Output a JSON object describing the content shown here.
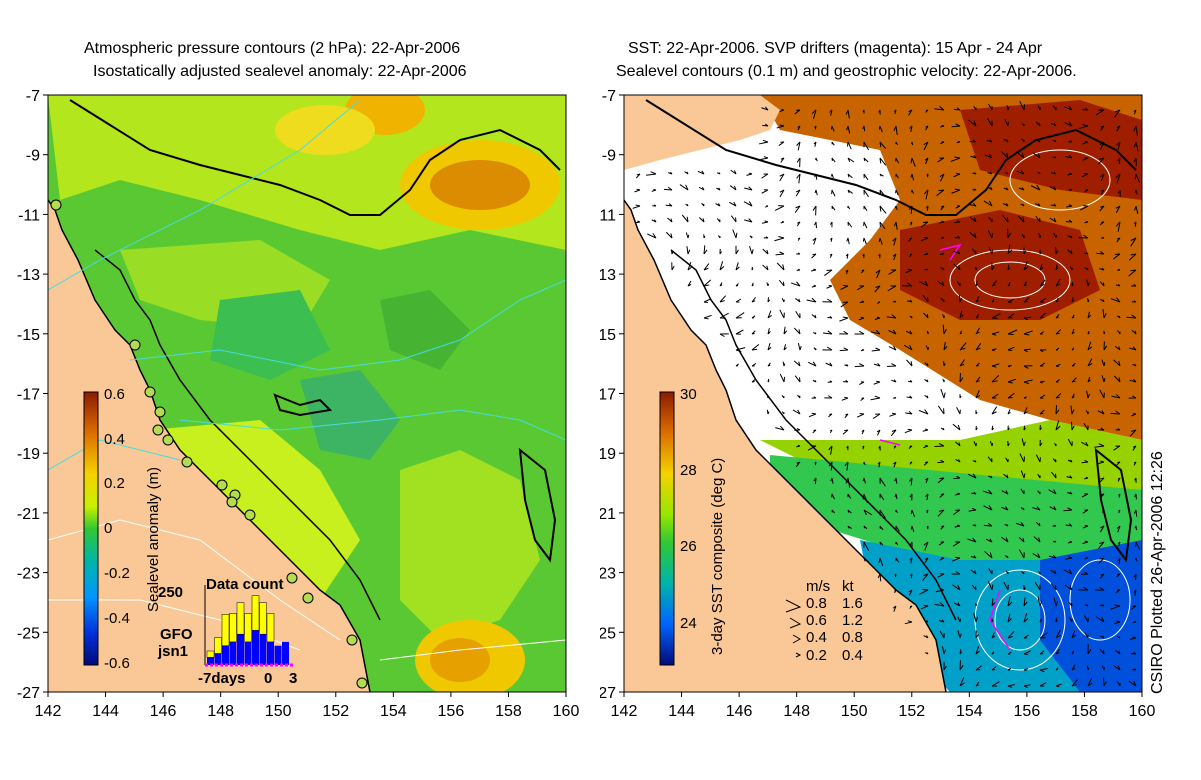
{
  "left_panel": {
    "title_line1": "Atmospheric pressure contours (2 hPa): 22-Apr-2006",
    "title_line2": "Isostatically adjusted sealevel anomaly: 22-Apr-2006",
    "colorbar": {
      "label": "Sealevel anomaly (m)",
      "ticks": [
        "0.6",
        "0.4",
        "0.2",
        "0",
        "-0.2",
        "-0.4",
        "-0.6"
      ],
      "range": [
        -0.6,
        0.6
      ]
    },
    "inset": {
      "title": "Data count",
      "ymax_label": "250",
      "series": [
        {
          "name": "GFO",
          "color": "#ffff00",
          "values": [
            0.2,
            0.5,
            1.0,
            0.9,
            1.0,
            0.9,
            1.1,
            1.0,
            0.9,
            0,
            0
          ]
        },
        {
          "name": "jsn1",
          "color": "#0000ff",
          "values": [
            0.2,
            0.3,
            0.5,
            0.6,
            0.8,
            0.6,
            0.9,
            0.8,
            0.6,
            0.5,
            0.6
          ]
        }
      ],
      "xlabel_left": "-7days",
      "xlabel_mid": "0",
      "xlabel_right": "3"
    },
    "colors": {
      "land": "#fac896",
      "sea_base": "#64c828"
    }
  },
  "right_panel": {
    "title_line1": "SST: 22-Apr-2006. SVP drifters (magenta): 15 Apr - 24 Apr",
    "title_line2": "Sealevel contours (0.1 m) and geostrophic velocity: 22-Apr-2006.",
    "colorbar": {
      "label": "3-day SST composite (deg C)",
      "ticks": [
        "30",
        "28",
        "26",
        "24"
      ],
      "range": [
        23,
        30
      ]
    },
    "speed_legend": {
      "header_ms": "m/s",
      "header_kt": "kt",
      "rows": [
        {
          "ms": "0.8",
          "kt": "1.6"
        },
        {
          "ms": "0.6",
          "kt": "1.2"
        },
        {
          "ms": "0.4",
          "kt": "0.8"
        },
        {
          "ms": "0.2",
          "kt": "0.4"
        }
      ]
    },
    "colors": {
      "land": "#fac896",
      "drifters": "#ff00ff"
    }
  },
  "axes": {
    "x_ticks": [
      "142",
      "144",
      "146",
      "148",
      "150",
      "152",
      "154",
      "156",
      "158",
      "160"
    ],
    "y_ticks": [
      "-7",
      "-9",
      "-11",
      "-13",
      "-15",
      "-17",
      "-19",
      "-21",
      "-23",
      "-25",
      "-27"
    ]
  },
  "credit": "CSIRO Plotted 26-Apr-2006 12:26"
}
